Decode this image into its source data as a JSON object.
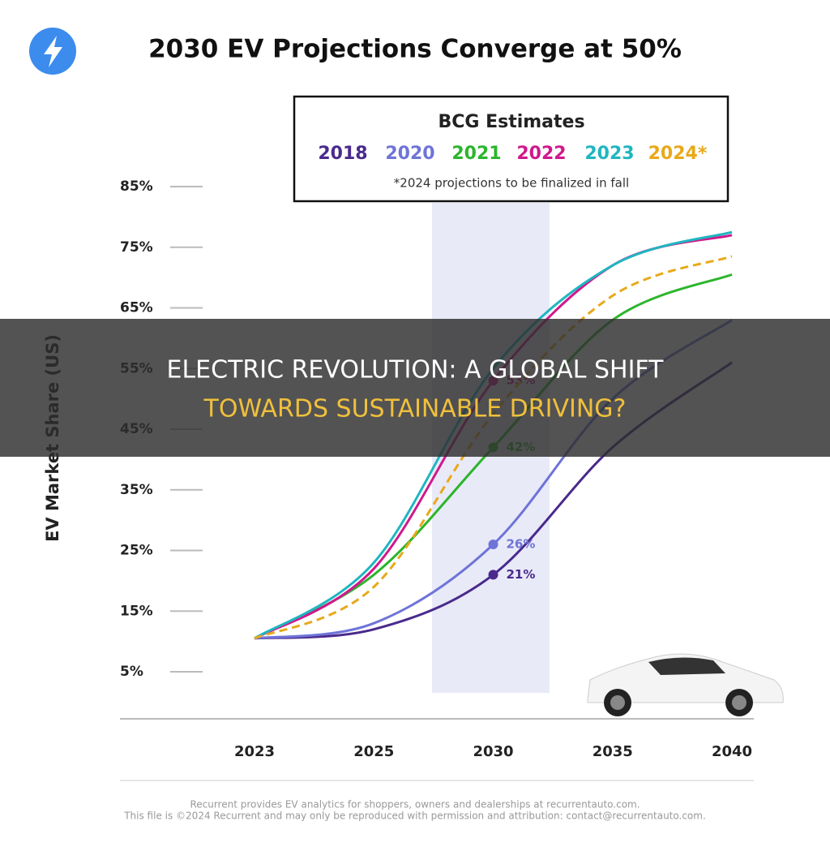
{
  "chart_data": {
    "type": "line",
    "title": "2030 EV Projections Converge at 50%",
    "legend_title": "BCG Estimates",
    "legend_note": "*2024 projections to be finalized in fall",
    "y_label": "EV Market Share (US)",
    "categories": [
      "2023",
      "2025",
      "2030",
      "2035",
      "2040"
    ],
    "series": [
      {
        "name": "2018",
        "color": "#4a2a8c",
        "values": [
          10.5,
          12,
          21,
          42,
          56
        ],
        "value_labels": [
          null,
          null,
          "21%",
          null,
          null
        ]
      },
      {
        "name": "2020",
        "color": "#6f74d8",
        "values": [
          10.5,
          13,
          26,
          50,
          63
        ],
        "value_labels": [
          null,
          null,
          "26%",
          null,
          null
        ]
      },
      {
        "name": "2021",
        "color": "#2cb52c",
        "values": [
          10.5,
          21,
          42,
          63,
          70.5
        ],
        "value_labels": [
          null,
          null,
          "42%",
          null,
          null
        ]
      },
      {
        "name": "2022",
        "color": "#d0188c",
        "values": [
          10.5,
          22,
          53,
          72,
          77
        ],
        "value_labels": [
          null,
          null,
          "53%",
          null,
          null
        ]
      },
      {
        "name": "2023",
        "color": "#1fb6c1",
        "values": [
          10.5,
          23,
          55,
          72,
          77.5
        ],
        "value_labels": [
          null,
          null,
          null,
          null,
          null
        ]
      },
      {
        "name": "2024*",
        "color": "#e8a91a",
        "dashed": true,
        "values": [
          10.5,
          19,
          47.5,
          67,
          73.5
        ],
        "value_labels": [
          null,
          null,
          null,
          null,
          null
        ]
      }
    ],
    "ylim": [
      -2.8,
      88
    ],
    "yticks": [
      {
        "value": 5,
        "label": "5%"
      },
      {
        "value": 15,
        "label": "15%"
      },
      {
        "value": 25,
        "label": "25%"
      },
      {
        "value": 35,
        "label": "35%"
      },
      {
        "value": 45,
        "label": "45%"
      },
      {
        "value": 55,
        "label": "55%"
      },
      {
        "value": 65,
        "label": "65%"
      },
      {
        "value": 75,
        "label": "75%"
      },
      {
        "value": 85,
        "label": "85%"
      }
    ],
    "grid": true
  },
  "banner": {
    "line1": "ELECTRIC REVOLUTION: A GLOBAL SHIFT",
    "line2": "TOWARDS SUSTAINABLE DRIVING?"
  },
  "footer": {
    "line1": "Recurrent provides EV analytics for shoppers, owners and dealerships at recurrentauto.com.",
    "line2": "This file is ©2024 Recurrent and may only be reproduced with permission and attribution: contact@recurrentauto.com."
  }
}
